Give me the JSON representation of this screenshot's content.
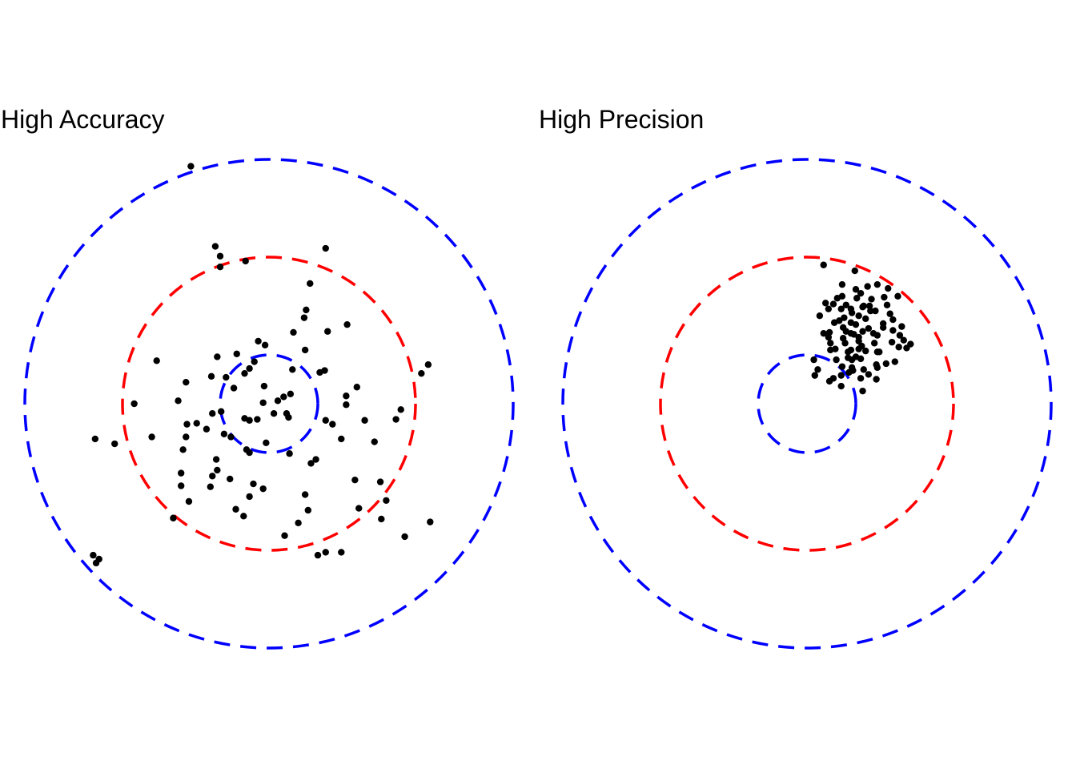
{
  "chart_data": [
    {
      "type": "scatter",
      "title": "High Accuracy",
      "xlabel": "",
      "ylabel": "",
      "xlim": [
        -2.5,
        2.5
      ],
      "ylim": [
        -2.5,
        2.5
      ],
      "grid": false,
      "rings": [
        {
          "radius": 0.5,
          "color": "#0000FF"
        },
        {
          "radius": 1.5,
          "color": "#FF0000"
        },
        {
          "radius": 2.5,
          "color": "#0000FF"
        }
      ],
      "points": [
        [
          -0.8,
          2.43
        ],
        [
          -0.55,
          1.61
        ],
        [
          -0.5,
          1.51
        ],
        [
          -0.24,
          1.46
        ],
        [
          -0.5,
          1.4
        ],
        [
          0.58,
          1.59
        ],
        [
          -1.8,
          -1.55
        ],
        [
          -1.77,
          -1.63
        ],
        [
          -0.6,
          -0.85
        ],
        [
          -0.58,
          -0.74
        ],
        [
          -0.39,
          -0.34
        ],
        [
          -0.74,
          -0.2
        ],
        [
          -0.54,
          -0.57
        ],
        [
          -0.2,
          -0.5
        ],
        [
          -0.06,
          -0.87
        ],
        [
          -0.2,
          -0.95
        ],
        [
          -0.03,
          -0.4
        ],
        [
          0.21,
          -0.51
        ],
        [
          0.43,
          -0.61
        ],
        [
          0.48,
          -0.57
        ],
        [
          0.37,
          -0.93
        ],
        [
          0.16,
          -1.35
        ],
        [
          -0.16,
          -0.82
        ],
        [
          0.4,
          -1.09
        ],
        [
          0.74,
          -0.36
        ],
        [
          0.58,
          -0.17
        ],
        [
          0.79,
          -0.01
        ],
        [
          0.98,
          -0.17
        ],
        [
          0.79,
          0.08
        ],
        [
          0.9,
          0.17
        ],
        [
          1.08,
          -0.39
        ],
        [
          0.88,
          -0.78
        ],
        [
          1.14,
          -0.8
        ],
        [
          1.2,
          -0.99
        ],
        [
          0.92,
          -1.07
        ],
        [
          0.5,
          -1.55
        ],
        [
          0.74,
          -1.52
        ],
        [
          1.15,
          -1.18
        ],
        [
          0.3,
          -1.22
        ],
        [
          1.35,
          -0.06
        ],
        [
          1.3,
          -0.16
        ],
        [
          1.39,
          -1.36
        ],
        [
          0.57,
          0.34
        ],
        [
          0.52,
          0.32
        ],
        [
          0.24,
          0.35
        ],
        [
          0.36,
          0.88
        ],
        [
          0.37,
          0.55
        ],
        [
          0.25,
          0.73
        ],
        [
          0.42,
          1.23
        ],
        [
          0.38,
          0.96
        ],
        [
          0.6,
          0.74
        ],
        [
          0.8,
          0.81
        ],
        [
          0.65,
          -0.21
        ],
        [
          0.2,
          -0.14
        ],
        [
          0.05,
          -0.1
        ],
        [
          -0.25,
          -0.15
        ],
        [
          -0.05,
          0.18
        ],
        [
          0.09,
          0.03
        ],
        [
          -0.06,
          0.01
        ],
        [
          0.15,
          0.07
        ],
        [
          -0.15,
          0.43
        ],
        [
          -0.25,
          0.31
        ],
        [
          -0.44,
          0.27
        ],
        [
          -0.33,
          0.51
        ],
        [
          -0.11,
          0.64
        ],
        [
          -0.2,
          0.36
        ],
        [
          -0.04,
          0.6
        ],
        [
          -0.53,
          0.48
        ],
        [
          -0.59,
          0.28
        ],
        [
          -0.36,
          0.16
        ],
        [
          0.22,
          0.1
        ],
        [
          0.18,
          -0.1
        ],
        [
          -0.2,
          -0.17
        ],
        [
          -0.49,
          -0.08
        ],
        [
          -0.58,
          -0.1
        ],
        [
          -0.53,
          -0.68
        ],
        [
          -0.4,
          -0.77
        ],
        [
          -0.26,
          -1.15
        ],
        [
          -0.34,
          -1.08
        ],
        [
          -0.64,
          -0.26
        ],
        [
          -0.46,
          -0.31
        ],
        [
          -0.85,
          -0.34
        ],
        [
          -0.88,
          -0.47
        ],
        [
          -0.82,
          -1.0
        ],
        [
          -0.9,
          -0.71
        ],
        [
          -0.84,
          -0.21
        ],
        [
          -0.93,
          0.03
        ],
        [
          -0.9,
          -0.84
        ],
        [
          -1.2,
          -0.34
        ],
        [
          -0.98,
          -1.17
        ],
        [
          -1.15,
          0.44
        ],
        [
          -0.85,
          0.22
        ],
        [
          -0.12,
          -0.16
        ],
        [
          -1.58,
          -0.41
        ],
        [
          -1.78,
          -0.36
        ],
        [
          -0.23,
          -0.47
        ],
        [
          -1.38,
          0.0
        ],
        [
          1.56,
          0.31
        ],
        [
          1.63,
          0.4
        ],
        [
          1.65,
          -1.21
        ],
        [
          -1.74,
          -1.59
        ],
        [
          0.58,
          -1.52
        ]
      ]
    },
    {
      "type": "scatter",
      "title": "High Precision",
      "xlabel": "",
      "ylabel": "",
      "xlim": [
        -2.5,
        2.5
      ],
      "ylim": [
        -2.5,
        2.5
      ],
      "grid": false,
      "rings": [
        {
          "radius": 0.5,
          "color": "#0000FF"
        },
        {
          "radius": 1.5,
          "color": "#FF0000"
        },
        {
          "radius": 2.5,
          "color": "#0000FF"
        }
      ],
      "points": [
        [
          0.17,
          1.42
        ],
        [
          0.49,
          1.36
        ],
        [
          0.36,
          1.22
        ],
        [
          0.36,
          1.1
        ],
        [
          0.51,
          1.08
        ],
        [
          0.58,
          1.0
        ],
        [
          0.65,
          0.95
        ],
        [
          0.53,
          0.9
        ],
        [
          0.45,
          0.97
        ],
        [
          0.45,
          0.83
        ],
        [
          0.45,
          0.72
        ],
        [
          0.37,
          0.78
        ],
        [
          0.23,
          0.73
        ],
        [
          0.33,
          0.85
        ],
        [
          0.57,
          0.74
        ],
        [
          0.72,
          0.7
        ],
        [
          0.78,
          0.78
        ],
        [
          0.85,
          0.92
        ],
        [
          0.93,
          1.1
        ],
        [
          0.83,
          1.18
        ],
        [
          0.72,
          1.22
        ],
        [
          0.62,
          1.2
        ],
        [
          0.5,
          1.17
        ],
        [
          0.4,
          1.01
        ],
        [
          0.27,
          1.02
        ],
        [
          0.22,
          0.97
        ],
        [
          0.19,
          1.03
        ],
        [
          0.13,
          0.9
        ],
        [
          0.17,
          0.72
        ],
        [
          0.24,
          0.62
        ],
        [
          0.29,
          0.56
        ],
        [
          0.36,
          0.38
        ],
        [
          0.46,
          0.37
        ],
        [
          0.58,
          0.35
        ],
        [
          0.71,
          0.4
        ],
        [
          0.81,
          0.41
        ],
        [
          0.94,
          0.58
        ],
        [
          0.95,
          0.7
        ],
        [
          0.87,
          0.63
        ],
        [
          0.72,
          0.53
        ],
        [
          0.69,
          0.62
        ],
        [
          0.53,
          0.56
        ],
        [
          0.46,
          0.45
        ],
        [
          0.42,
          0.53
        ],
        [
          0.39,
          0.62
        ],
        [
          0.3,
          0.45
        ],
        [
          0.35,
          0.29
        ],
        [
          0.47,
          0.34
        ],
        [
          0.71,
          0.25
        ],
        [
          0.57,
          0.13
        ],
        [
          0.42,
          0.47
        ],
        [
          0.24,
          0.55
        ],
        [
          0.07,
          0.45
        ],
        [
          0.11,
          0.35
        ],
        [
          0.08,
          0.29
        ],
        [
          0.23,
          0.23
        ],
        [
          0.27,
          0.26
        ],
        [
          0.35,
          0.18
        ],
        [
          0.43,
          0.32
        ],
        [
          0.55,
          0.26
        ],
        [
          0.63,
          0.3
        ],
        [
          0.72,
          0.37
        ],
        [
          0.9,
          0.43
        ],
        [
          1.02,
          0.57
        ],
        [
          1.06,
          0.61
        ],
        [
          0.99,
          0.65
        ],
        [
          0.97,
          0.79
        ],
        [
          0.88,
          0.86
        ],
        [
          0.82,
          1.01
        ],
        [
          0.64,
          1.0
        ],
        [
          0.78,
          0.82
        ],
        [
          0.63,
          0.77
        ],
        [
          0.48,
          0.71
        ],
        [
          0.53,
          0.68
        ],
        [
          0.4,
          0.74
        ],
        [
          0.35,
          0.97
        ],
        [
          0.31,
          1.08
        ],
        [
          0.55,
          1.13
        ],
        [
          0.66,
          1.07
        ],
        [
          0.57,
          0.99
        ],
        [
          0.46,
          0.93
        ],
        [
          0.38,
          0.88
        ],
        [
          0.6,
          0.54
        ],
        [
          0.79,
          1.09
        ],
        [
          0.7,
          0.95
        ],
        [
          0.6,
          0.87
        ],
        [
          0.37,
          0.67
        ],
        [
          0.22,
          0.68
        ],
        [
          0.55,
          0.46
        ],
        [
          0.45,
          0.55
        ],
        [
          0.5,
          0.81
        ],
        [
          0.28,
          0.83
        ],
        [
          0.5,
          0.48
        ],
        [
          0.74,
          0.53
        ],
        [
          0.56,
          0.59
        ],
        [
          0.68,
          0.72
        ],
        [
          0.88,
          0.75
        ],
        [
          0.53,
          0.64
        ]
      ]
    }
  ]
}
